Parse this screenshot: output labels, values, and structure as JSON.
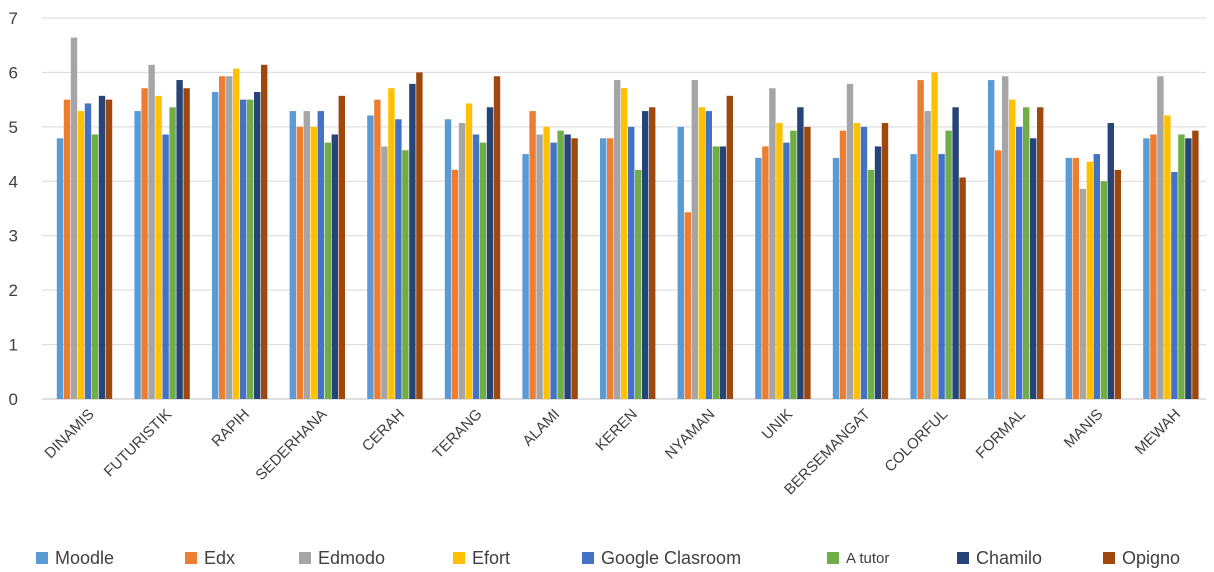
{
  "chart_data": {
    "type": "bar",
    "title": "",
    "xlabel": "",
    "ylabel": "",
    "ylim": [
      0,
      7
    ],
    "yticks": [
      "0",
      "1",
      "2",
      "3",
      "4",
      "5",
      "6",
      "7"
    ],
    "grid": true,
    "legend_position": "bottom",
    "categories": [
      "DINAMIS",
      "FUTURISTIK",
      "RAPIH",
      "SEDERHANA",
      "CERAH",
      "TERANG",
      "ALAMI",
      "KEREN",
      "NYAMAN",
      "UNIK",
      "BERSEMANGAT",
      "COLORFUL",
      "FORMAL",
      "MANIS",
      "MEWAH"
    ],
    "series": [
      {
        "name": "Moodle",
        "color": "#5B9BD5",
        "values": [
          4.79,
          5.29,
          5.64,
          5.29,
          5.21,
          5.14,
          4.5,
          4.79,
          5.0,
          4.43,
          4.43,
          4.5,
          5.86,
          4.43,
          4.79
        ]
      },
      {
        "name": "Edx",
        "color": "#ED7D31",
        "values": [
          5.5,
          5.71,
          5.93,
          5.0,
          5.5,
          4.21,
          5.29,
          4.79,
          3.43,
          4.64,
          4.93,
          5.86,
          4.57,
          4.43,
          4.86
        ]
      },
      {
        "name": "Edmodo",
        "color": "#A5A5A5",
        "values": [
          6.64,
          6.14,
          5.93,
          5.29,
          4.64,
          5.07,
          4.86,
          5.86,
          5.86,
          5.71,
          5.79,
          5.29,
          5.93,
          3.86,
          5.93
        ]
      },
      {
        "name": "Efort",
        "color": "#FFC000",
        "values": [
          5.29,
          5.57,
          6.07,
          5.0,
          5.71,
          5.43,
          5.0,
          5.71,
          5.36,
          5.07,
          5.07,
          6.0,
          5.5,
          4.36,
          5.21
        ]
      },
      {
        "name": "Google Clasroom",
        "color": "#4472C4",
        "values": [
          5.43,
          4.86,
          5.5,
          5.29,
          5.14,
          4.86,
          4.71,
          5.0,
          5.29,
          4.71,
          5.0,
          4.5,
          5.0,
          4.5,
          4.17
        ]
      },
      {
        "name": "A tutor",
        "color": "#70AD47",
        "values": [
          4.86,
          5.36,
          5.5,
          4.71,
          4.57,
          4.71,
          4.93,
          4.21,
          4.64,
          4.93,
          4.21,
          4.93,
          5.36,
          4.0,
          4.86
        ]
      },
      {
        "name": "Chamilo",
        "color": "#264478",
        "values": [
          5.57,
          5.86,
          5.64,
          4.86,
          5.79,
          5.36,
          4.86,
          5.29,
          4.64,
          5.36,
          4.64,
          5.36,
          4.79,
          5.07,
          4.79
        ]
      },
      {
        "name": "Opigno",
        "color": "#9E480E",
        "values": [
          5.5,
          5.71,
          6.14,
          5.57,
          6.0,
          5.93,
          4.79,
          5.36,
          5.57,
          5.0,
          5.07,
          4.07,
          5.36,
          4.21,
          4.93
        ]
      }
    ]
  }
}
